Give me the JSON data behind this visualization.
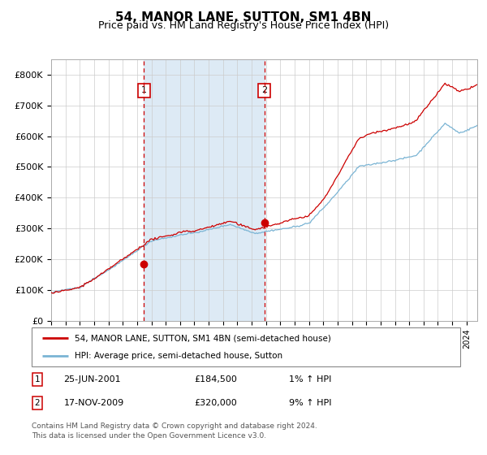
{
  "title": "54, MANOR LANE, SUTTON, SM1 4BN",
  "subtitle": "Price paid vs. HM Land Registry's House Price Index (HPI)",
  "bg_color": "#ffffff",
  "plot_bg_color": "#ffffff",
  "span_color": "#ddeaf5",
  "red_line_label": "54, MANOR LANE, SUTTON, SM1 4BN (semi-detached house)",
  "blue_line_label": "HPI: Average price, semi-detached house, Sutton",
  "annotation1_date": "25-JUN-2001",
  "annotation1_price": "£184,500",
  "annotation1_hpi": "1% ↑ HPI",
  "annotation1_year": 2001.48,
  "annotation1_value": 184500,
  "annotation2_date": "17-NOV-2009",
  "annotation2_price": "£320,000",
  "annotation2_hpi": "9% ↑ HPI",
  "annotation2_year": 2009.88,
  "annotation2_value": 320000,
  "footer1": "Contains HM Land Registry data © Crown copyright and database right 2024.",
  "footer2": "This data is licensed under the Open Government Licence v3.0.",
  "ylim": [
    0,
    850000
  ],
  "yticks": [
    0,
    100000,
    200000,
    300000,
    400000,
    500000,
    600000,
    700000,
    800000
  ],
  "ytick_labels": [
    "£0",
    "£100K",
    "£200K",
    "£300K",
    "£400K",
    "£500K",
    "£600K",
    "£700K",
    "£800K"
  ],
  "xmin": 1995.0,
  "xmax": 2024.75,
  "red_color": "#cc0000",
  "blue_color": "#7ab4d4",
  "grid_color": "#cccccc",
  "title_fontsize": 11,
  "subtitle_fontsize": 9
}
